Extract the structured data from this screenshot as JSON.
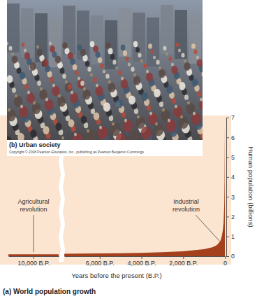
{
  "photo": {
    "caption": "(b) Urban society",
    "credit": "Copyright © 2008 Pearson Education, Inc., publishing as Pearson Benjamin Cummings"
  },
  "caption": "(a) World population growth",
  "chart_data": [
    {
      "type": "area",
      "x": [
        11200,
        10600,
        10000,
        9400,
        8800
      ],
      "values": [
        0.1,
        0.1,
        0.1,
        0.1,
        0.1
      ],
      "color": "#a4401c",
      "xlim": [
        11200,
        8800
      ],
      "xticks": [
        {
          "value": 10000,
          "label": "10,000 B.P."
        }
      ],
      "ylim": [
        0,
        7
      ],
      "tick_labels": "x",
      "annotations": [
        {
          "text": "Agricultural revolution",
          "x": 10000
        }
      ]
    },
    {
      "type": "area",
      "x": [
        7700,
        6000,
        5000,
        4000,
        3000,
        2000,
        1500,
        1000,
        600,
        400,
        300,
        200,
        150,
        100,
        60,
        30,
        15,
        0
      ],
      "values": [
        0.12,
        0.14,
        0.15,
        0.17,
        0.2,
        0.25,
        0.3,
        0.35,
        0.45,
        0.55,
        0.65,
        0.8,
        1.0,
        1.3,
        1.7,
        2.6,
        3.8,
        6.6
      ],
      "color": "#a4401c",
      "xlim": [
        7700,
        0
      ],
      "xticks": [
        {
          "value": 6000,
          "label": "6,000 B.P."
        },
        {
          "value": 4000,
          "label": "4,000 B.P."
        },
        {
          "value": 2000,
          "label": "2,000 B.P."
        },
        0
      ],
      "ylim": [
        0,
        7
      ],
      "yticks": [
        0,
        1,
        2,
        3,
        4,
        5,
        6,
        7
      ],
      "x_label": "Years before the present (B.P.)",
      "y_label": "Human population (billions)",
      "annotations": [
        {
          "text": "Industrial revolution",
          "x": 250
        }
      ]
    }
  ]
}
